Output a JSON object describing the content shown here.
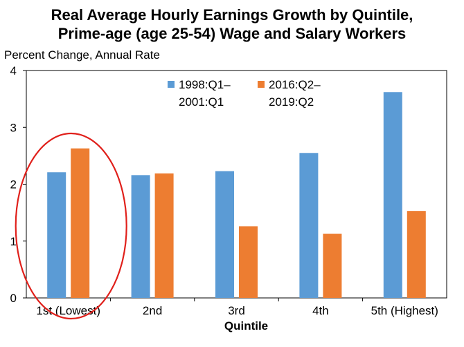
{
  "chart_data": {
    "type": "bar",
    "title_line1": "Real Average Hourly Earnings Growth by Quintile,",
    "title_line2": "Prime-age (age 25-54) Wage and Salary Workers",
    "ylabel": "Percent Change, Annual Rate",
    "xlabel": "Quintile",
    "categories": [
      "1st (Lowest)",
      "2nd",
      "3rd",
      "4th",
      "5th (Highest)"
    ],
    "series": [
      {
        "name_line1": "1998:Q1–",
        "name_line2": "2001:Q1",
        "color": "#5B9BD5",
        "values": [
          2.21,
          2.16,
          2.23,
          2.55,
          3.62
        ]
      },
      {
        "name_line1": "2016:Q2–",
        "name_line2": "2019:Q2",
        "color": "#ED7D31",
        "values": [
          2.63,
          2.19,
          1.26,
          1.13,
          1.53
        ]
      }
    ],
    "ylim": [
      0,
      4
    ],
    "yticks": [
      "0",
      "1",
      "2",
      "3",
      "4"
    ],
    "legend_position": "top-center",
    "grid": false,
    "annotation": {
      "type": "ellipse",
      "around": "1st (Lowest)",
      "color": "#E0201B"
    }
  }
}
